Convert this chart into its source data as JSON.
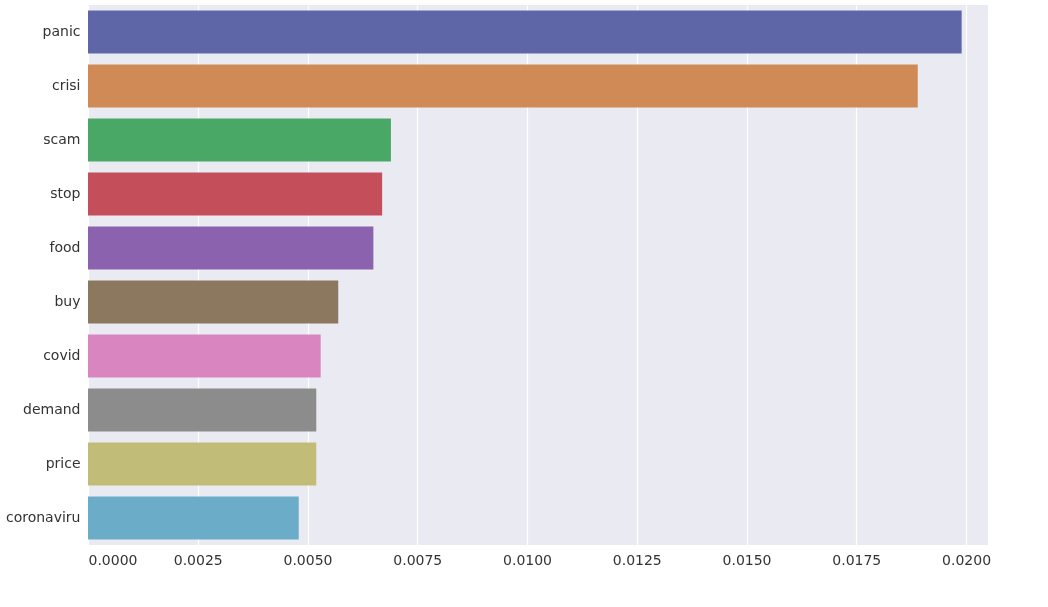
{
  "chart_data": {
    "type": "bar",
    "orientation": "horizontal",
    "categories": [
      "panic",
      "crisi",
      "scam",
      "stop",
      "food",
      "buy",
      "covid",
      "demand",
      "price",
      "coronaviru"
    ],
    "values": [
      0.0199,
      0.0189,
      0.0069,
      0.0067,
      0.0065,
      0.0057,
      0.0053,
      0.0052,
      0.0052,
      0.0048
    ],
    "colors": [
      "#5f66a8",
      "#cf8a56",
      "#4aa866",
      "#c44e5a",
      "#8b62ae",
      "#8c785e",
      "#d885c0",
      "#8c8c8c",
      "#c1bd78",
      "#6badc8"
    ],
    "xlim": [
      0,
      0.0205
    ],
    "xticks": [
      {
        "value": 0,
        "label": "0.0000"
      },
      0.0025,
      {
        "value": 0.005,
        "label": "0.0050"
      },
      0.0075,
      {
        "value": 0.01,
        "label": "0.0100"
      },
      0.0125,
      {
        "value": 0.015,
        "label": "0.0150"
      },
      0.0175,
      {
        "value": 0.02,
        "label": "0.0200"
      }
    ],
    "grid": "x"
  }
}
